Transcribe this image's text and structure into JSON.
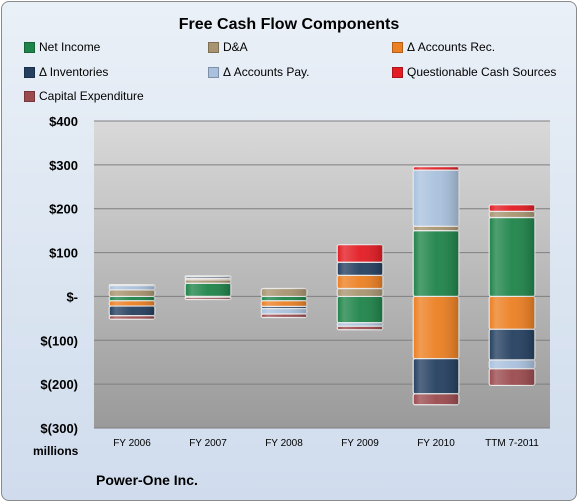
{
  "chart_data": {
    "type": "bar",
    "stacked": true,
    "title": "Free Cash Flow Components",
    "company": "Power-One Inc.",
    "ylabel": "millions",
    "ylim": [
      -300,
      400
    ],
    "yticks": [
      -300,
      -200,
      -100,
      0,
      100,
      200,
      300,
      400
    ],
    "ytick_labels": [
      "$(300)",
      "$(200)",
      "$(100)",
      "$-",
      "$100",
      "$200",
      "$300",
      "$400"
    ],
    "categories": [
      "FY 2006",
      "FY 2007",
      "FY 2008",
      "FY 2009",
      "FY 2010",
      "TTM 7-2011"
    ],
    "grid": true,
    "legend_position": "top",
    "series": [
      {
        "name": "Net Income",
        "color": "#1e8449",
        "values": [
          -10,
          30,
          -10,
          -60,
          150,
          180
        ]
      },
      {
        "name": "D&A",
        "color": "#a89470",
        "values": [
          15,
          8,
          18,
          18,
          10,
          14
        ]
      },
      {
        "name": "Δ Accounts Rec.",
        "color": "#ec7f22",
        "values": [
          -12,
          3,
          -13,
          30,
          -142,
          -75
        ]
      },
      {
        "name": "Δ Inventories",
        "color": "#243f60",
        "values": [
          -22,
          4,
          -5,
          30,
          -80,
          -70
        ]
      },
      {
        "name": "Δ Accounts Pay.",
        "color": "#a9c1de",
        "values": [
          10,
          -2,
          -12,
          -8,
          128,
          -20
        ]
      },
      {
        "name": "Questionable Cash Sources",
        "color": "#e31b23",
        "values": [
          2,
          2,
          0,
          40,
          8,
          15
        ]
      },
      {
        "name": "Capital Expenditure",
        "color": "#9b4a4e",
        "values": [
          -8,
          -5,
          -8,
          -8,
          -25,
          -38
        ]
      }
    ]
  }
}
